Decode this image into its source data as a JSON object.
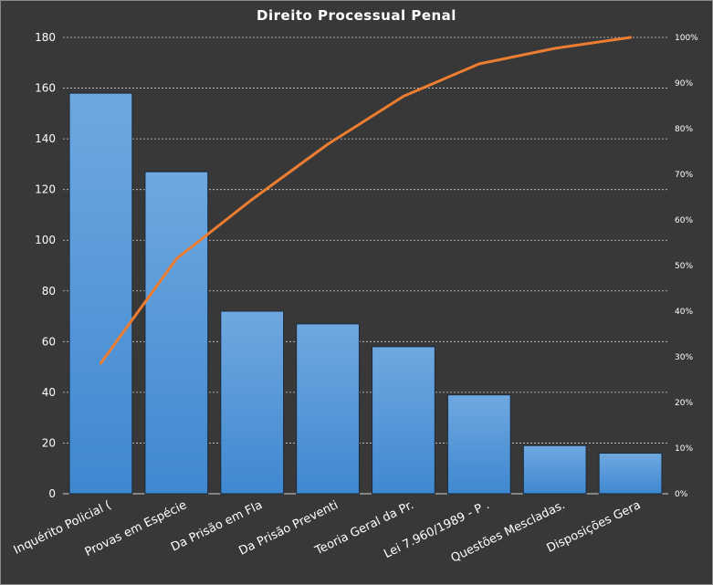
{
  "chart_data": {
    "type": "bar",
    "title": "Direito  Processual  Penal",
    "categories": [
      "Inquérito  Policial (",
      "Provas em Espécie",
      "Da Prisão em Fla",
      "Da Prisão Preventi",
      "Teoria Geral da Pr.",
      "Lei 7.960/1989 - P .",
      "Questões Mescladas.",
      "Disposições Gera"
    ],
    "values": [
      158,
      127,
      72,
      67,
      58,
      39,
      19,
      16
    ],
    "cumulative_percent": [
      28.6,
      51.5,
      64.5,
      76.6,
      87.1,
      94.2,
      97.6,
      100
    ],
    "ylim": [
      0,
      180
    ],
    "yticks": [
      0,
      20,
      40,
      60,
      80,
      100,
      120,
      140,
      160,
      180
    ],
    "y2lim": [
      0,
      100
    ],
    "y2ticks": [
      "0%",
      "10%",
      "20%",
      "30%",
      "40%",
      "50%",
      "60%",
      "70%",
      "80%",
      "90%",
      "100%"
    ],
    "grid": true,
    "colors": {
      "bar_top": "#6fa8e0",
      "bar_bottom": "#3f88d0",
      "line": "#ed7d31",
      "background": "#383838"
    }
  }
}
